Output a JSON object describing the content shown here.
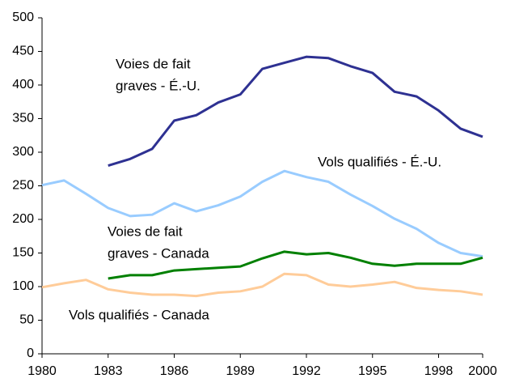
{
  "chart_data": {
    "type": "line",
    "x": [
      1980,
      1981,
      1982,
      1983,
      1984,
      1985,
      1986,
      1987,
      1988,
      1989,
      1990,
      1991,
      1992,
      1993,
      1994,
      1995,
      1996,
      1997,
      1998,
      1999,
      2000
    ],
    "xlim": [
      1980,
      2000
    ],
    "xticks": [
      1980,
      1983,
      1986,
      1989,
      1992,
      1995,
      1998,
      2000
    ],
    "ylim": [
      0,
      500
    ],
    "yticks": [
      0,
      50,
      100,
      150,
      200,
      250,
      300,
      350,
      400,
      450,
      500
    ],
    "grid": false,
    "series": [
      {
        "name": [
          "Voies de fait",
          "graves - É.-U."
        ],
        "color": "#2e3192",
        "values": [
          null,
          null,
          null,
          280,
          290,
          305,
          347,
          355,
          374,
          386,
          424,
          433,
          442,
          440,
          428,
          418,
          390,
          383,
          362,
          335,
          323
        ]
      },
      {
        "name": [
          "Vols qualifiés - É.-U."
        ],
        "color": "#99ccff",
        "values": [
          251,
          258,
          238,
          217,
          205,
          207,
          224,
          212,
          221,
          234,
          256,
          272,
          263,
          256,
          237,
          220,
          201,
          186,
          165,
          150,
          145
        ]
      },
      {
        "name": [
          "Voies de fait",
          "graves - Canada"
        ],
        "color": "#008000",
        "values": [
          null,
          null,
          null,
          112,
          117,
          117,
          124,
          126,
          128,
          130,
          142,
          152,
          148,
          150,
          143,
          134,
          131,
          134,
          134,
          134,
          143
        ]
      },
      {
        "name": [
          "Vols qualifiés - Canada"
        ],
        "color": "#ffcc99",
        "values": [
          99,
          105,
          110,
          96,
          91,
          88,
          88,
          86,
          91,
          93,
          100,
          119,
          117,
          103,
          100,
          103,
          107,
          98,
          95,
          93,
          88
        ]
      }
    ]
  }
}
